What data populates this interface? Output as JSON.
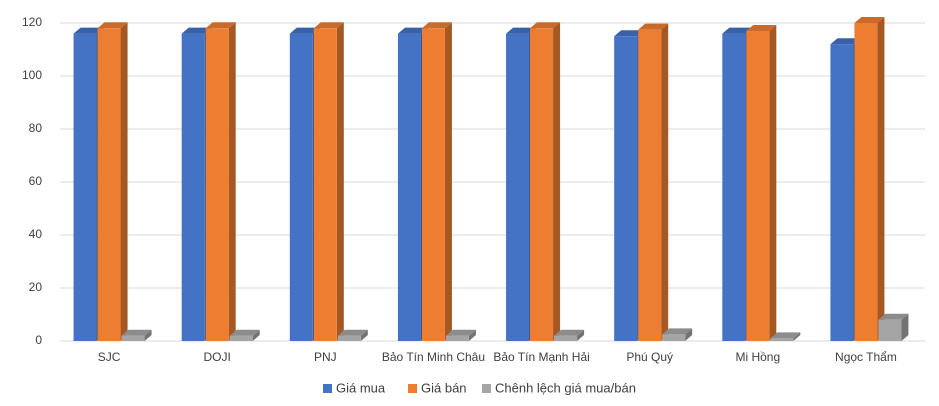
{
  "chart_data": {
    "type": "bar3d",
    "categories": [
      "SJC",
      "DOJI",
      "PNJ",
      "Bảo Tín Minh Châu",
      "Bảo Tín Mạnh Hải",
      "Phú Quý",
      "Mi Hồng",
      "Ngọc Thẩm"
    ],
    "series": [
      {
        "name": "Giá mua",
        "color": "#4472c4",
        "values": [
          116,
          116,
          116,
          116,
          116,
          115,
          116,
          112
        ]
      },
      {
        "name": "Giá bán",
        "color": "#ed7d31",
        "values": [
          118,
          118,
          118,
          118,
          118,
          117.5,
          117,
          120
        ]
      },
      {
        "name": "Chênh lệch giá mua/bán",
        "color": "#a5a5a5",
        "values": [
          2,
          2,
          2,
          2,
          2,
          2.5,
          1,
          8
        ]
      }
    ],
    "ylim": [
      0,
      120
    ],
    "yticks": [
      0,
      20,
      40,
      60,
      80,
      100,
      120
    ],
    "grid": true,
    "legend": "bottom"
  }
}
